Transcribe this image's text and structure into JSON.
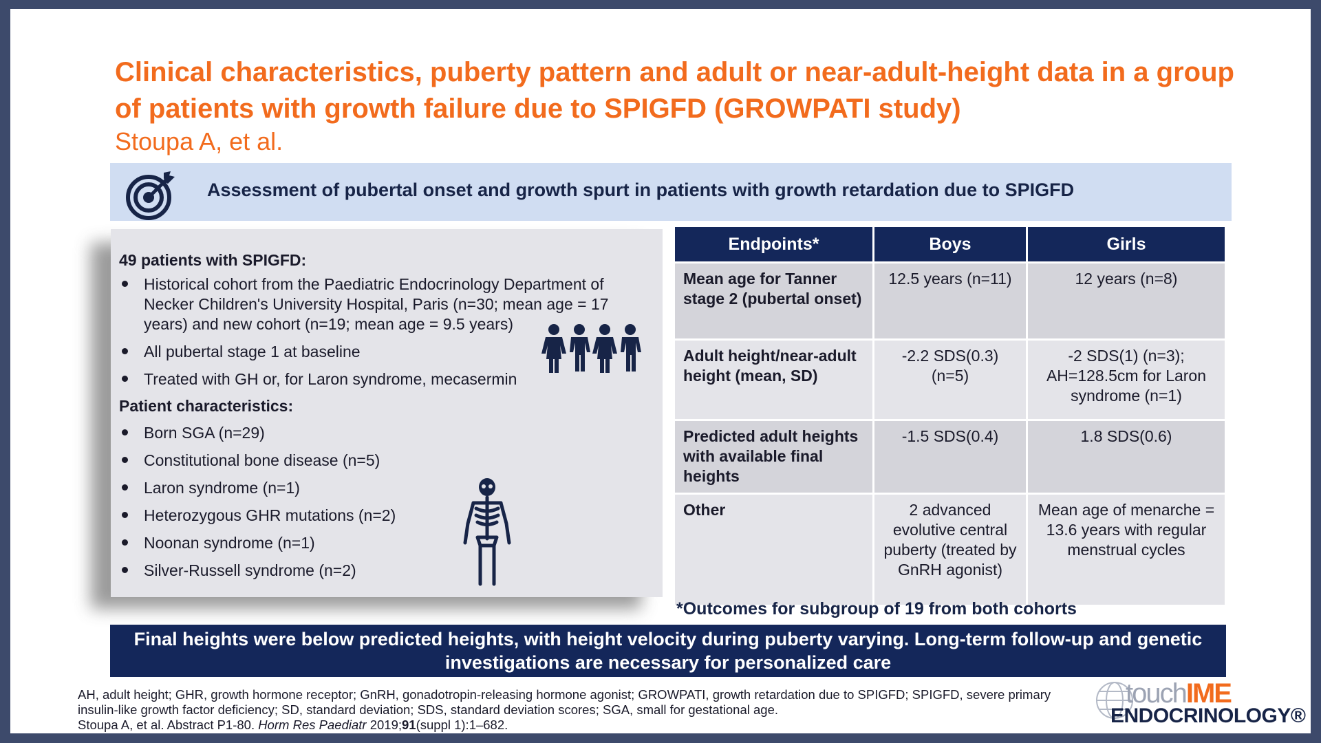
{
  "title": "Clinical characteristics, puberty pattern and adult or near-adult-height data in a group of patients with growth failure due to SPIGFD (GROWPATI study)",
  "authors": "Stoupa A, et al.",
  "banner": {
    "text": "Assessment of pubertal onset and growth spurt in patients with growth retardation due to SPIGFD",
    "icon": "target-icon"
  },
  "left_panel": {
    "heading1": "49 patients with SPIGFD:",
    "bullets1": [
      "Historical cohort from the Paediatric Endocrinology Department of Necker Children's University Hospital, Paris (n=30; mean age = 17 years) and new cohort (n=19; mean age = 9.5 years)",
      "All pubertal stage 1 at baseline",
      "Treated with GH or, for Laron syndrome, mecasermin"
    ],
    "heading2": "Patient characteristics:",
    "bullets2": [
      "Born SGA (n=29)",
      "Constitutional bone disease (n=5)",
      "Laron syndrome (n=1)",
      "Heterozygous GHR mutations (n=2)",
      "Noonan syndrome (n=1)",
      "Silver-Russell syndrome (n=2)"
    ],
    "icons": [
      "people-icon",
      "skeleton-icon"
    ]
  },
  "table": {
    "headers": [
      "Endpoints*",
      "Boys",
      "Girls"
    ],
    "rows": [
      {
        "label": "Mean age for Tanner stage 2 (pubertal onset)",
        "boys": "12.5 years (n=11)",
        "girls": "12 years (n=8)"
      },
      {
        "label": "Adult height/near-adult height (mean, SD)",
        "boys": "-2.2 SDS(0.3) (n=5)",
        "girls": "-2 SDS(1) (n=3); AH=128.5cm for Laron syndrome (n=1)"
      },
      {
        "label": "Predicted adult heights with available final heights",
        "boys": "-1.5 SDS(0.4)",
        "girls": "1.8 SDS(0.6)"
      },
      {
        "label": "Other",
        "boys": "2 advanced evolutive central puberty (treated by GnRH agonist)",
        "girls": "Mean age of menarche = 13.6 years with regular menstrual cycles"
      }
    ],
    "footnote": "*Outcomes for subgroup of 19 from both cohorts"
  },
  "conclusion": "Final heights were below predicted heights, with height velocity during puberty varying. Long-term follow-up and genetic investigations are necessary for personalized care",
  "references": {
    "line1": "AH, adult height; GHR, growth hormone receptor; GnRH, gonadotropin-releasing hormone agonist; GROWPATI, growth retardation due to SPIGFD; SPIGFD, severe primary insulin-like growth factor deficiency; SD, standard deviation; SDS, standard deviation scores; SGA, small for gestational age.",
    "cite_prefix": "Stoupa A, et al. Abstract P1-80. ",
    "cite_journal": "Horm Res Paediatr",
    "cite_year": " 2019;",
    "cite_volume": "91",
    "cite_suffix": "(suppl 1):1–682."
  },
  "brand": {
    "touch": "touch",
    "ime": "IME",
    "sub": "ENDOCRINOLOGY®"
  },
  "colors": {
    "accent": "#f26b1d",
    "navy": "#14275a",
    "banner": "#d0ddf2",
    "panel": "#e4e4e9",
    "frame": "#3d4a6b"
  }
}
